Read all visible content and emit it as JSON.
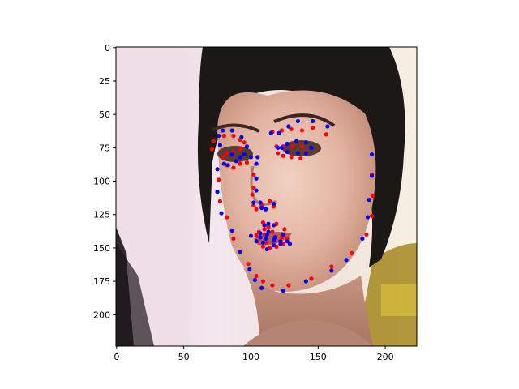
{
  "figure": {
    "background": "#ffffff"
  },
  "chart_data": {
    "type": "scatter",
    "title": "",
    "xlabel": "",
    "ylabel": "",
    "xlim": [
      -0.5,
      223.5
    ],
    "ylim": [
      223.5,
      -0.5
    ],
    "y_inverted": true,
    "grid": false,
    "legend": "none",
    "background_image": "face-photo",
    "xticks": [
      0,
      50,
      100,
      150,
      200
    ],
    "yticks": [
      0,
      25,
      50,
      75,
      100,
      125,
      150,
      175,
      200
    ],
    "series": [
      {
        "color": "#ff0000",
        "points": [
          [
            72,
            70
          ],
          [
            71,
            76
          ],
          [
            76,
            99
          ],
          [
            77,
            115
          ],
          [
            82,
            127
          ],
          [
            87,
            143
          ],
          [
            92,
            153
          ],
          [
            98,
            162
          ],
          [
            104,
            171
          ],
          [
            109,
            175
          ],
          [
            116,
            178
          ],
          [
            128,
            178
          ],
          [
            145,
            173
          ],
          [
            160,
            164
          ],
          [
            175,
            154
          ],
          [
            186,
            140
          ],
          [
            190,
            126
          ],
          [
            191,
            111
          ],
          [
            190,
            95
          ],
          [
            80,
            66
          ],
          [
            87,
            66
          ],
          [
            92,
            69
          ],
          [
            95,
            71
          ],
          [
            92,
            76
          ],
          [
            87,
            78
          ],
          [
            82,
            79
          ],
          [
            79,
            82
          ],
          [
            82,
            88
          ],
          [
            87,
            90
          ],
          [
            92,
            87
          ],
          [
            97,
            86
          ],
          [
            116,
            63
          ],
          [
            123,
            62
          ],
          [
            130,
            61
          ],
          [
            138,
            62
          ],
          [
            146,
            60
          ],
          [
            156,
            65
          ],
          [
            119,
            74
          ],
          [
            124,
            74
          ],
          [
            131,
            74
          ],
          [
            138,
            74
          ],
          [
            141,
            78
          ],
          [
            137,
            83
          ],
          [
            130,
            82
          ],
          [
            124,
            81
          ],
          [
            120,
            79
          ],
          [
            102,
            95
          ],
          [
            102,
            105
          ],
          [
            101,
            110
          ],
          [
            102,
            118
          ],
          [
            104,
            121
          ],
          [
            108,
            118
          ],
          [
            114,
            115
          ],
          [
            117,
            119
          ],
          [
            104,
            140
          ],
          [
            106,
            138
          ],
          [
            110,
            136
          ],
          [
            113,
            135
          ],
          [
            119,
            132
          ],
          [
            125,
            136
          ],
          [
            127,
            143
          ],
          [
            124,
            147
          ],
          [
            119,
            149
          ],
          [
            114,
            150
          ],
          [
            109,
            149
          ],
          [
            105,
            145
          ],
          [
            104,
            141
          ],
          [
            110,
            140
          ],
          [
            116,
            138
          ],
          [
            123,
            142
          ],
          [
            117,
            145
          ],
          [
            111,
            146
          ],
          [
            109,
            131
          ],
          [
            113,
            134
          ]
        ]
      },
      {
        "color": "#0000ff",
        "points": [
          [
            76,
            66
          ],
          [
            77,
            73
          ],
          [
            75,
            91
          ],
          [
            75,
            108
          ],
          [
            78,
            124
          ],
          [
            86,
            137
          ],
          [
            92,
            153
          ],
          [
            99,
            166
          ],
          [
            103,
            174
          ],
          [
            108,
            180
          ],
          [
            124,
            182
          ],
          [
            141,
            175
          ],
          [
            160,
            167
          ],
          [
            171,
            159
          ],
          [
            183,
            143
          ],
          [
            187,
            127
          ],
          [
            188,
            114
          ],
          [
            190,
            96
          ],
          [
            190,
            80
          ],
          [
            79,
            62
          ],
          [
            86,
            62
          ],
          [
            93,
            67
          ],
          [
            97,
            74
          ],
          [
            95,
            80
          ],
          [
            89,
            85
          ],
          [
            83,
            88
          ],
          [
            80,
            87
          ],
          [
            86,
            80
          ],
          [
            92,
            82
          ],
          [
            100,
            82
          ],
          [
            105,
            82
          ],
          [
            115,
            64
          ],
          [
            121,
            64
          ],
          [
            128,
            59
          ],
          [
            135,
            55
          ],
          [
            146,
            55
          ],
          [
            157,
            59
          ],
          [
            120,
            75
          ],
          [
            127,
            72
          ],
          [
            134,
            70
          ],
          [
            141,
            71
          ],
          [
            145,
            75
          ],
          [
            141,
            79
          ],
          [
            135,
            79
          ],
          [
            127,
            78
          ],
          [
            123,
            75
          ],
          [
            104,
            87
          ],
          [
            104,
            98
          ],
          [
            104,
            107
          ],
          [
            102,
            116
          ],
          [
            107,
            116
          ],
          [
            111,
            121
          ],
          [
            117,
            117
          ],
          [
            108,
            120
          ],
          [
            100,
            141
          ],
          [
            107,
            139
          ],
          [
            113,
            138
          ],
          [
            117,
            133
          ],
          [
            124,
            140
          ],
          [
            129,
            147
          ],
          [
            127,
            145
          ],
          [
            122,
            147
          ],
          [
            117,
            144
          ],
          [
            112,
            140
          ],
          [
            109,
            146
          ],
          [
            104,
            145
          ],
          [
            107,
            142
          ],
          [
            111,
            143
          ],
          [
            118,
            142
          ],
          [
            122,
            145
          ],
          [
            117,
            148
          ],
          [
            112,
            151
          ],
          [
            113,
            132
          ],
          [
            110,
            133
          ]
        ]
      }
    ]
  }
}
